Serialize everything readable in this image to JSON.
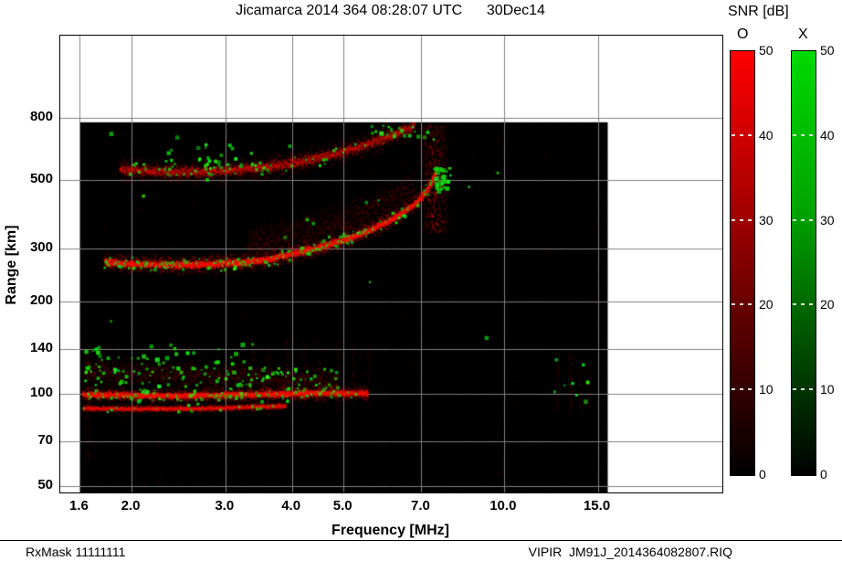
{
  "title": "Jicamarca 2014 364 08:28:07 UTC      30Dec14",
  "footer": {
    "left": "RxMask 11111111",
    "right": "VIPIR  JM91J_2014364082807.RIQ"
  },
  "colorbar": {
    "title": "SNR [dB]",
    "o_label": "O",
    "x_label": "X",
    "tick_values": [
      50,
      40,
      30,
      20,
      10,
      0
    ],
    "tick_labels": [
      "50",
      "40",
      "30",
      "20",
      "10",
      "0"
    ],
    "min": 0,
    "max": 50,
    "o_top_color": "#ff0000",
    "x_top_color": "#00d900",
    "bottom_color": "#000000"
  },
  "chart_data": {
    "type": "heatmap",
    "title": "Jicamarca 2014 364 08:28:07 UTC 30Dec14",
    "xlabel": "Frequency [MHz]",
    "ylabel": "Range [km]",
    "x_scale": "log",
    "y_scale": "log",
    "grid": true,
    "background": "#000000",
    "grid_color": "#828282",
    "xlim": [
      1.47,
      25.7
    ],
    "ylim": [
      47.5,
      1490
    ],
    "x_ticks": [
      1.6,
      2,
      3,
      4,
      5,
      7,
      10,
      15
    ],
    "x_tick_labels": [
      "1.6",
      "2.0",
      "3.0",
      "4.0",
      "5.0",
      "7.0",
      "10.0",
      "15.0"
    ],
    "y_ticks": [
      50,
      70,
      100,
      140,
      200,
      300,
      500,
      800
    ],
    "y_tick_labels": [
      "50",
      "70",
      "100",
      "140",
      "200",
      "300",
      "500",
      "800"
    ],
    "data_extent": {
      "f_mhz": [
        1.6,
        15.66
      ],
      "range_km": [
        47.5,
        775
      ]
    },
    "traces": [
      {
        "name": "f-region-spread-above",
        "points": [
          [
            3.3,
            315
          ],
          [
            3.9,
            330
          ],
          [
            4.5,
            352
          ],
          [
            5.1,
            378
          ],
          [
            5.7,
            408
          ],
          [
            6.3,
            440
          ],
          [
            6.8,
            470
          ]
        ],
        "core_sigma": 0,
        "core_alpha": 0,
        "halo_sigma": 18,
        "halo_alpha": 0.15,
        "green_prob": 0.05,
        "green_spread": 14
      },
      {
        "name": "f-region-second-hop",
        "points": [
          [
            1.9,
            545
          ],
          [
            2.4,
            536
          ],
          [
            2.9,
            539
          ],
          [
            3.4,
            551
          ],
          [
            3.9,
            570
          ],
          [
            4.4,
            594
          ],
          [
            4.9,
            621
          ],
          [
            5.4,
            651
          ],
          [
            5.9,
            686
          ],
          [
            6.4,
            727
          ],
          [
            6.8,
            760
          ]
        ],
        "core_sigma": 5,
        "core_alpha": 0.4,
        "halo_sigma": 13,
        "halo_alpha": 0.16,
        "green_prob": 0.22,
        "green_spread": 10
      },
      {
        "name": "e-region-diffuse",
        "points": [
          [
            1.62,
            119
          ],
          [
            2.5,
            116
          ],
          [
            3.3,
            114
          ],
          [
            4.2,
            112
          ],
          [
            4.9,
            110
          ]
        ],
        "core_sigma": 0,
        "core_alpha": 0,
        "halo_sigma": 14,
        "halo_alpha": 0.15,
        "green_prob": 0.4,
        "green_spread": 18
      },
      {
        "name": "e-region-sub-band",
        "points": [
          [
            1.62,
            90
          ],
          [
            2.7,
            90
          ],
          [
            3.9,
            92
          ]
        ],
        "core_sigma": 2,
        "core_alpha": 0.45,
        "halo_sigma": 4,
        "halo_alpha": 0.15,
        "green_prob": 0.08,
        "green_spread": 4
      },
      {
        "name": "e-region-band",
        "points": [
          [
            1.62,
            100
          ],
          [
            2.4,
            99
          ],
          [
            3.2,
            100
          ],
          [
            4.3,
            101
          ],
          [
            5.55,
            101
          ]
        ],
        "core_sigma": 2.5,
        "core_alpha": 0.9,
        "halo_sigma": 7,
        "halo_alpha": 0.3,
        "green_prob": 0.3,
        "green_spread": 6
      },
      {
        "name": "f-region-first-hop",
        "points": [
          [
            1.78,
            272
          ],
          [
            2.0,
            268
          ],
          [
            2.4,
            266
          ],
          [
            2.8,
            267
          ],
          [
            3.2,
            271
          ],
          [
            3.6,
            278
          ],
          [
            4.0,
            289
          ],
          [
            4.4,
            301
          ],
          [
            4.8,
            314
          ],
          [
            5.2,
            329
          ],
          [
            5.6,
            346
          ],
          [
            6.0,
            366
          ],
          [
            6.4,
            391
          ],
          [
            6.8,
            423
          ],
          [
            7.1,
            458
          ],
          [
            7.3,
            495
          ],
          [
            7.45,
            540
          ]
        ],
        "core_sigma": 3,
        "core_alpha": 0.95,
        "halo_sigma": 9,
        "halo_alpha": 0.3,
        "green_prob": 0.5,
        "green_spread": 7
      }
    ],
    "vbands": [
      {
        "name": "foF2-asymptote",
        "f": [
          7.0,
          7.9
        ],
        "range": [
          340,
          548
        ],
        "alpha": 0.5
      },
      {
        "name": "second-hop-asymptote",
        "f": [
          6.9,
          7.9
        ],
        "range": [
          556,
          770
        ],
        "alpha": 0.3
      }
    ],
    "striations": [
      {
        "f": 1.65,
        "range": [
          60,
          140
        ],
        "alpha": 0.18
      },
      {
        "f": 3.35,
        "range": [
          88,
          150
        ],
        "alpha": 0.14
      },
      {
        "f": 3.6,
        "range": [
          86,
          148
        ],
        "alpha": 0.13
      },
      {
        "f": 3.9,
        "range": [
          88,
          152
        ],
        "alpha": 0.15
      },
      {
        "f": 4.2,
        "range": [
          88,
          150
        ],
        "alpha": 0.12
      },
      {
        "f": 4.5,
        "range": [
          90,
          148
        ],
        "alpha": 0.14
      },
      {
        "f": 4.85,
        "range": [
          88,
          150
        ],
        "alpha": 0.12
      },
      {
        "f": 5.2,
        "range": [
          90,
          145
        ],
        "alpha": 0.12
      },
      {
        "f": 5.55,
        "range": [
          92,
          142
        ],
        "alpha": 0.12
      },
      {
        "f": 12.6,
        "range": [
          88,
          132
        ],
        "alpha": 0.12
      },
      {
        "f": 13.3,
        "range": [
          86,
          135
        ],
        "alpha": 0.16
      },
      {
        "f": 13.9,
        "range": [
          88,
          130
        ],
        "alpha": 0.12
      },
      {
        "f": 14.4,
        "range": [
          90,
          128
        ],
        "alpha": 0.1
      }
    ],
    "green_clusters": [
      {
        "name": "foF2-top",
        "f": [
          7.45,
          7.95
        ],
        "range": [
          460,
          548
        ],
        "count": 30
      },
      {
        "name": "second-hop-left",
        "f": [
          2.3,
          3.5
        ],
        "range": [
          555,
          655
        ],
        "count": 22
      },
      {
        "name": "second-hop-top",
        "f": [
          5.6,
          7.5
        ],
        "range": [
          680,
          770
        ],
        "count": 16
      },
      {
        "name": "e-region-specks",
        "f": [
          1.62,
          3.6
        ],
        "range": [
          92,
          148
        ],
        "count": 60
      },
      {
        "name": "interference-specks",
        "f": [
          12.4,
          14.5
        ],
        "range": [
          90,
          130
        ],
        "count": 8
      },
      {
        "name": "sparse-specks",
        "f": [
          1.7,
          15.0
        ],
        "range": [
          55,
          740
        ],
        "count": 12
      }
    ],
    "noise": {
      "count": 5200,
      "alpha": 0.1
    }
  }
}
